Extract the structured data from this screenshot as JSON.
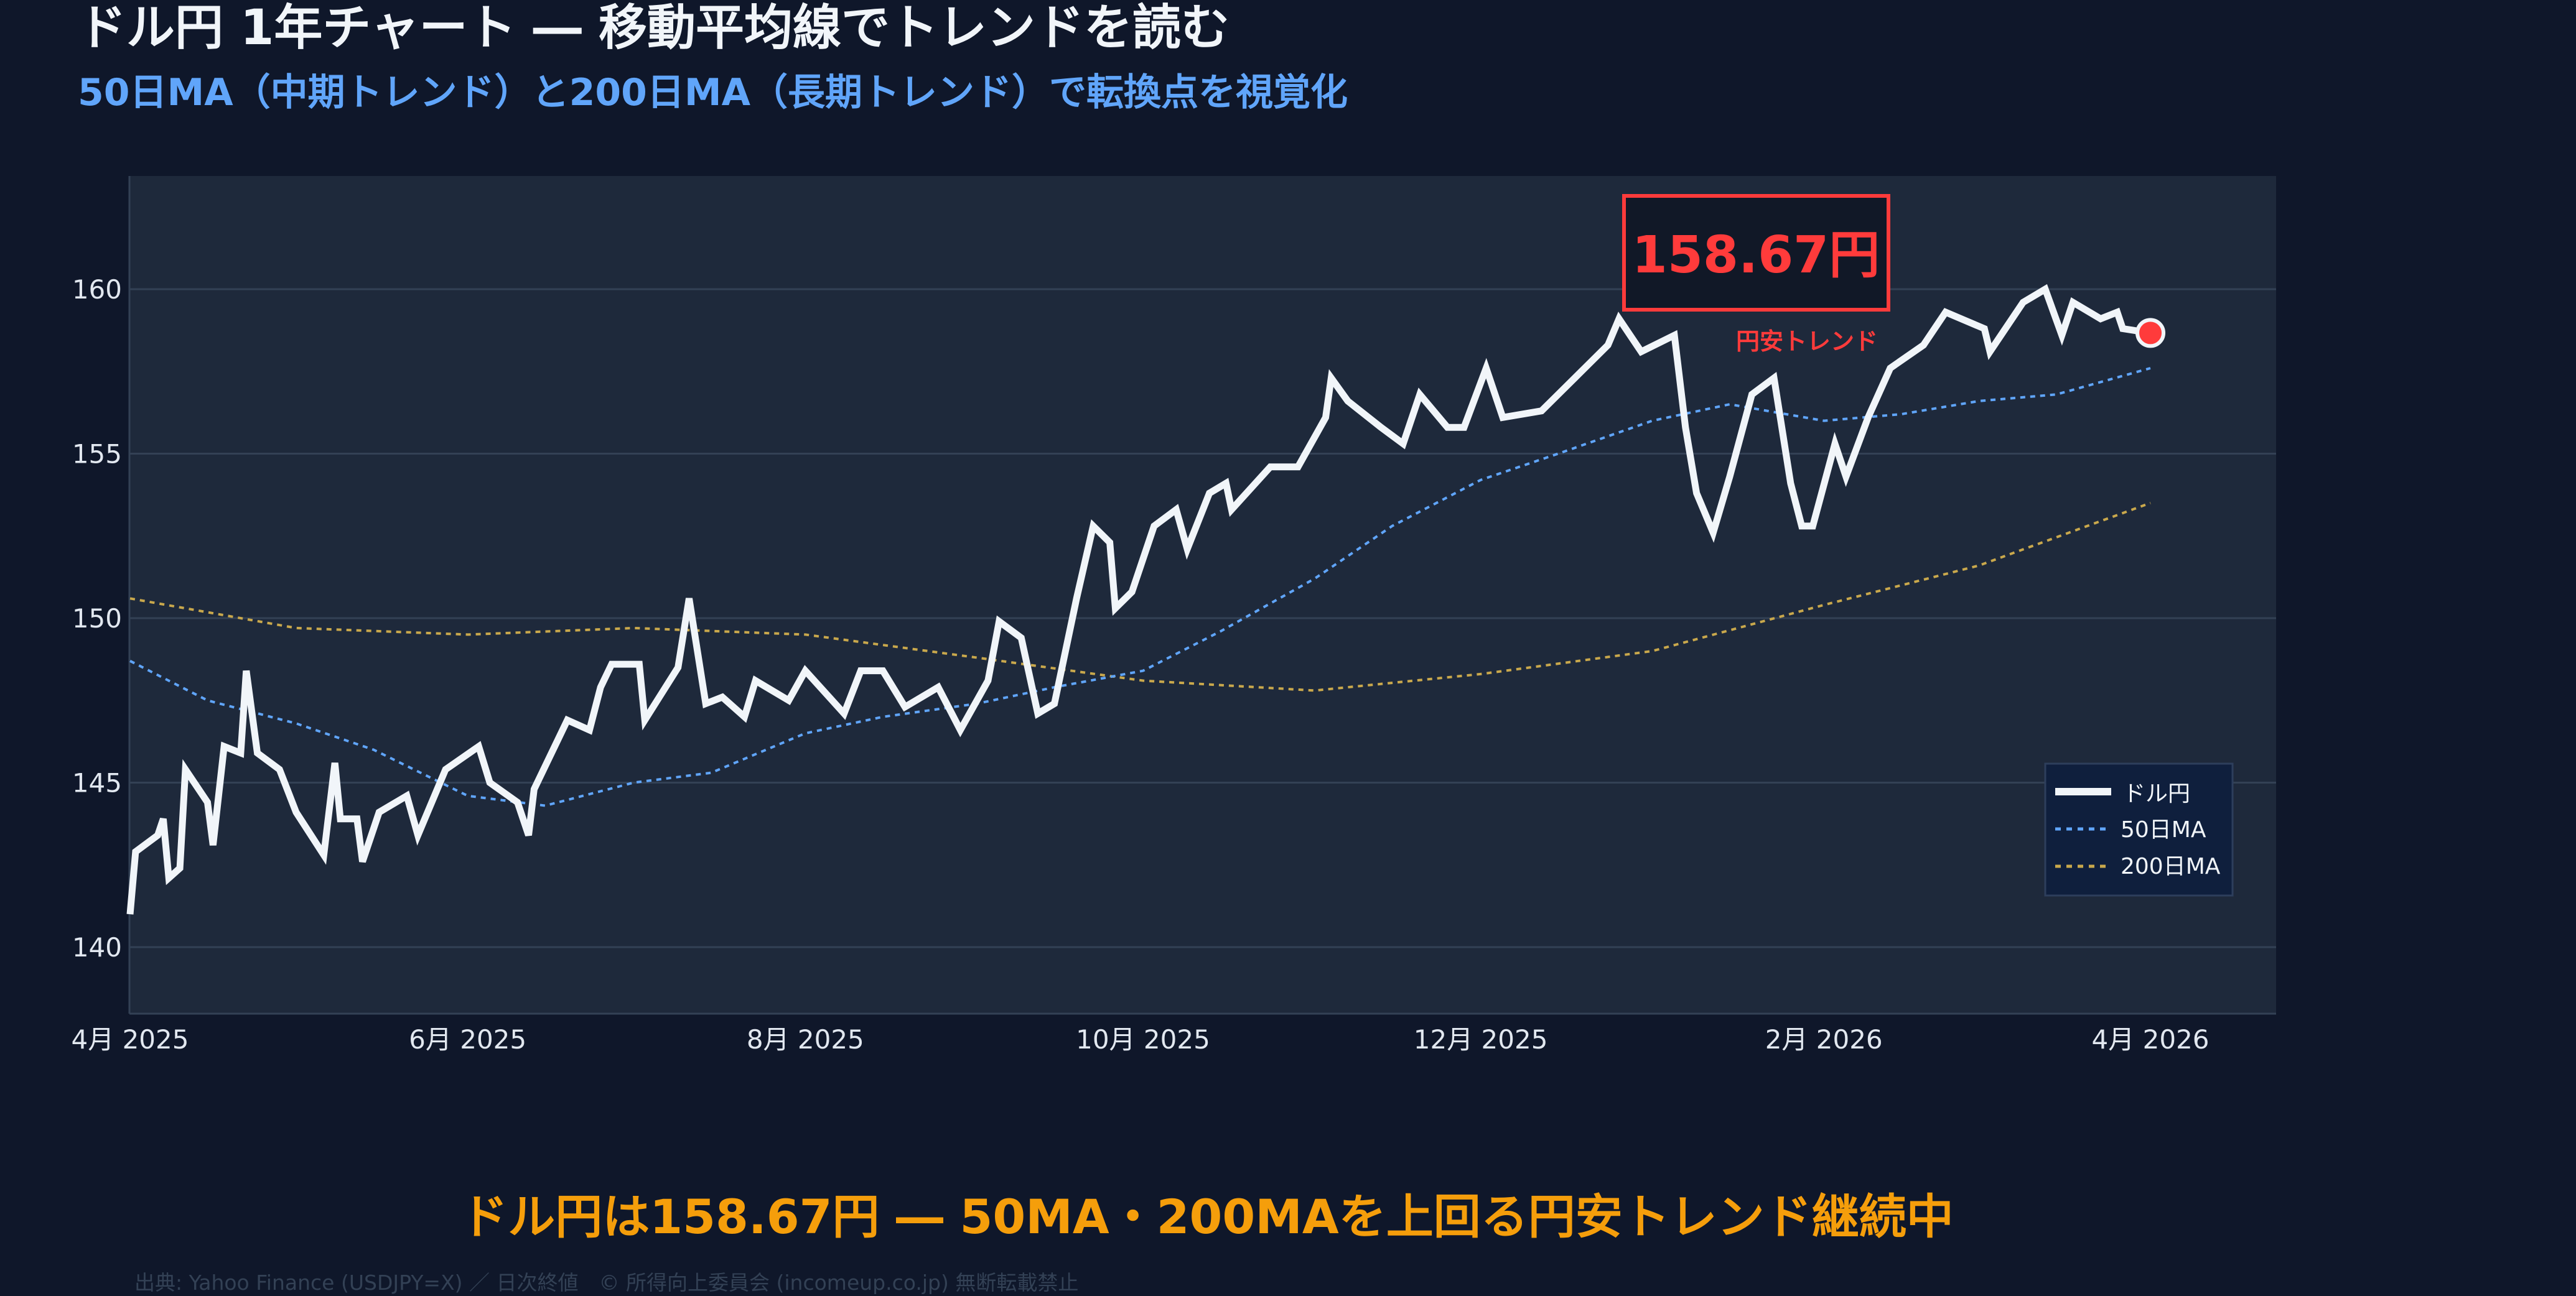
{
  "header": {
    "title": "ドル円 1年チャート ― 移動平均線でトレンドを読む",
    "subtitle": "50日MA（中期トレンド）と200日MA（長期トレンド）で転換点を視覚化"
  },
  "footer": {
    "takeaway": "ドル円は158.67円 ― 50MA・200MAを上回る円安トレンド継続中",
    "source": "出典: Yahoo Finance (USDJPY=X) ／ 日次終値　© 所得向上委員会 (incomeup.co.jp) 無断転載禁止"
  },
  "colors": {
    "background": "#0f172a",
    "plot_background": "#1e293b",
    "price": "#f1f5f9",
    "ma50": "#60a5fa",
    "ma200": "#c9a84c",
    "annotation": "#ff3b3b",
    "takeaway": "#f59e0b"
  },
  "chart_data": {
    "type": "line",
    "title": "",
    "xlabel": "",
    "ylabel": "",
    "xlim": [
      "2025-04-01",
      "2026-04-15"
    ],
    "ylim": [
      139.2,
      163.4
    ],
    "grid": true,
    "legend_position": "bottom-right",
    "x_ticks": [
      {
        "date": "2025-04-01",
        "label": "4月 2025"
      },
      {
        "date": "2025-06-01",
        "label": "6月 2025"
      },
      {
        "date": "2025-08-01",
        "label": "8月 2025"
      },
      {
        "date": "2025-10-01",
        "label": "10月 2025"
      },
      {
        "date": "2025-12-01",
        "label": "12月 2025"
      },
      {
        "date": "2026-02-01",
        "label": "2月 2026"
      },
      {
        "date": "2026-04-01",
        "label": "4月 2026"
      }
    ],
    "y_ticks": [
      140,
      145,
      150,
      155,
      160
    ],
    "series": [
      {
        "name": "ドル円",
        "style": "solid",
        "points": [
          [
            "2025-04-01",
            141.0
          ],
          [
            "2025-04-02",
            142.9
          ],
          [
            "2025-04-06",
            143.4
          ],
          [
            "2025-04-07",
            143.9
          ],
          [
            "2025-04-08",
            142.1
          ],
          [
            "2025-04-10",
            142.4
          ],
          [
            "2025-04-11",
            145.4
          ],
          [
            "2025-04-15",
            144.4
          ],
          [
            "2025-04-16",
            143.1
          ],
          [
            "2025-04-18",
            146.1
          ],
          [
            "2025-04-21",
            145.9
          ],
          [
            "2025-04-22",
            148.4
          ],
          [
            "2025-04-24",
            145.9
          ],
          [
            "2025-04-28",
            145.4
          ],
          [
            "2025-05-01",
            144.1
          ],
          [
            "2025-05-06",
            142.8
          ],
          [
            "2025-05-08",
            145.6
          ],
          [
            "2025-05-09",
            143.9
          ],
          [
            "2025-05-12",
            143.9
          ],
          [
            "2025-05-13",
            142.6
          ],
          [
            "2025-05-16",
            144.1
          ],
          [
            "2025-05-21",
            144.6
          ],
          [
            "2025-05-23",
            143.4
          ],
          [
            "2025-05-28",
            145.4
          ],
          [
            "2025-06-03",
            146.1
          ],
          [
            "2025-06-05",
            145.0
          ],
          [
            "2025-06-10",
            144.4
          ],
          [
            "2025-06-12",
            143.4
          ],
          [
            "2025-06-13",
            144.8
          ],
          [
            "2025-06-19",
            146.9
          ],
          [
            "2025-06-23",
            146.6
          ],
          [
            "2025-06-25",
            147.9
          ],
          [
            "2025-06-27",
            148.6
          ],
          [
            "2025-07-02",
            148.6
          ],
          [
            "2025-07-03",
            146.9
          ],
          [
            "2025-07-09",
            148.5
          ],
          [
            "2025-07-11",
            150.6
          ],
          [
            "2025-07-14",
            147.4
          ],
          [
            "2025-07-17",
            147.6
          ],
          [
            "2025-07-21",
            147.0
          ],
          [
            "2025-07-23",
            148.1
          ],
          [
            "2025-07-25",
            147.9
          ],
          [
            "2025-07-29",
            147.5
          ],
          [
            "2025-08-01",
            148.4
          ],
          [
            "2025-08-08",
            147.1
          ],
          [
            "2025-08-11",
            148.4
          ],
          [
            "2025-08-15",
            148.4
          ],
          [
            "2025-08-19",
            147.3
          ],
          [
            "2025-08-25",
            147.9
          ],
          [
            "2025-08-29",
            146.6
          ],
          [
            "2025-09-03",
            148.1
          ],
          [
            "2025-09-05",
            149.9
          ],
          [
            "2025-09-09",
            149.4
          ],
          [
            "2025-09-12",
            147.1
          ],
          [
            "2025-09-15",
            147.4
          ],
          [
            "2025-09-19",
            150.6
          ],
          [
            "2025-09-22",
            152.8
          ],
          [
            "2025-09-25",
            152.3
          ],
          [
            "2025-09-26",
            150.3
          ],
          [
            "2025-09-29",
            150.8
          ],
          [
            "2025-10-03",
            152.8
          ],
          [
            "2025-10-07",
            153.3
          ],
          [
            "2025-10-09",
            152.1
          ],
          [
            "2025-10-13",
            153.8
          ],
          [
            "2025-10-16",
            154.1
          ],
          [
            "2025-10-17",
            153.3
          ],
          [
            "2025-10-24",
            154.6
          ],
          [
            "2025-10-29",
            154.6
          ],
          [
            "2025-11-03",
            156.1
          ],
          [
            "2025-11-04",
            157.3
          ],
          [
            "2025-11-07",
            156.6
          ],
          [
            "2025-11-13",
            155.8
          ],
          [
            "2025-11-17",
            155.3
          ],
          [
            "2025-11-20",
            156.8
          ],
          [
            "2025-11-25",
            155.8
          ],
          [
            "2025-11-28",
            155.8
          ],
          [
            "2025-12-02",
            157.6
          ],
          [
            "2025-12-05",
            156.1
          ],
          [
            "2025-12-12",
            156.3
          ],
          [
            "2025-12-18",
            157.3
          ],
          [
            "2025-12-24",
            158.3
          ],
          [
            "2025-12-26",
            159.1
          ],
          [
            "2025-12-30",
            158.1
          ],
          [
            "2026-01-05",
            158.6
          ],
          [
            "2026-01-07",
            155.8
          ],
          [
            "2026-01-09",
            153.8
          ],
          [
            "2026-01-12",
            152.6
          ],
          [
            "2026-01-15",
            154.3
          ],
          [
            "2026-01-19",
            156.8
          ],
          [
            "2026-01-23",
            157.3
          ],
          [
            "2026-01-26",
            154.1
          ],
          [
            "2026-01-28",
            152.8
          ],
          [
            "2026-01-30",
            152.8
          ],
          [
            "2026-02-03",
            155.3
          ],
          [
            "2026-02-05",
            154.3
          ],
          [
            "2026-02-09",
            156.1
          ],
          [
            "2026-02-13",
            157.6
          ],
          [
            "2026-02-19",
            158.3
          ],
          [
            "2026-02-23",
            159.3
          ],
          [
            "2026-03-02",
            158.8
          ],
          [
            "2026-03-03",
            158.1
          ],
          [
            "2026-03-09",
            159.6
          ],
          [
            "2026-03-13",
            160.0
          ],
          [
            "2026-03-16",
            158.6
          ],
          [
            "2026-03-18",
            159.6
          ],
          [
            "2026-03-23",
            159.1
          ],
          [
            "2026-03-26",
            159.3
          ],
          [
            "2026-03-27",
            158.8
          ],
          [
            "2026-04-01",
            158.67
          ]
        ]
      },
      {
        "name": "50日MA",
        "style": "dotted",
        "points": [
          [
            "2025-04-01",
            148.7
          ],
          [
            "2025-04-15",
            147.5
          ],
          [
            "2025-05-01",
            146.8
          ],
          [
            "2025-05-15",
            146.0
          ],
          [
            "2025-06-01",
            144.6
          ],
          [
            "2025-06-15",
            144.3
          ],
          [
            "2025-07-01",
            145.0
          ],
          [
            "2025-07-15",
            145.3
          ],
          [
            "2025-08-01",
            146.5
          ],
          [
            "2025-08-15",
            147.0
          ],
          [
            "2025-09-01",
            147.4
          ],
          [
            "2025-09-15",
            147.9
          ],
          [
            "2025-10-01",
            148.4
          ],
          [
            "2025-10-15",
            149.6
          ],
          [
            "2025-11-01",
            151.2
          ],
          [
            "2025-11-15",
            152.8
          ],
          [
            "2025-12-01",
            154.2
          ],
          [
            "2025-12-15",
            155.0
          ],
          [
            "2026-01-01",
            156.0
          ],
          [
            "2026-01-15",
            156.5
          ],
          [
            "2026-02-01",
            156.0
          ],
          [
            "2026-02-15",
            156.2
          ],
          [
            "2026-03-01",
            156.6
          ],
          [
            "2026-03-15",
            156.8
          ],
          [
            "2026-04-01",
            157.6
          ]
        ]
      },
      {
        "name": "200日MA",
        "style": "dotted",
        "points": [
          [
            "2025-04-01",
            150.6
          ],
          [
            "2025-05-01",
            149.7
          ],
          [
            "2025-06-01",
            149.5
          ],
          [
            "2025-07-01",
            149.7
          ],
          [
            "2025-08-01",
            149.5
          ],
          [
            "2025-09-01",
            148.8
          ],
          [
            "2025-10-01",
            148.1
          ],
          [
            "2025-11-01",
            147.8
          ],
          [
            "2025-12-01",
            148.3
          ],
          [
            "2026-01-01",
            149.0
          ],
          [
            "2026-02-01",
            150.4
          ],
          [
            "2026-03-01",
            151.6
          ],
          [
            "2026-04-01",
            153.5
          ]
        ]
      }
    ],
    "annotation": {
      "value_label": "158.67円",
      "note": "円安トレンド",
      "date": "2026-04-01",
      "value": 158.67
    }
  }
}
